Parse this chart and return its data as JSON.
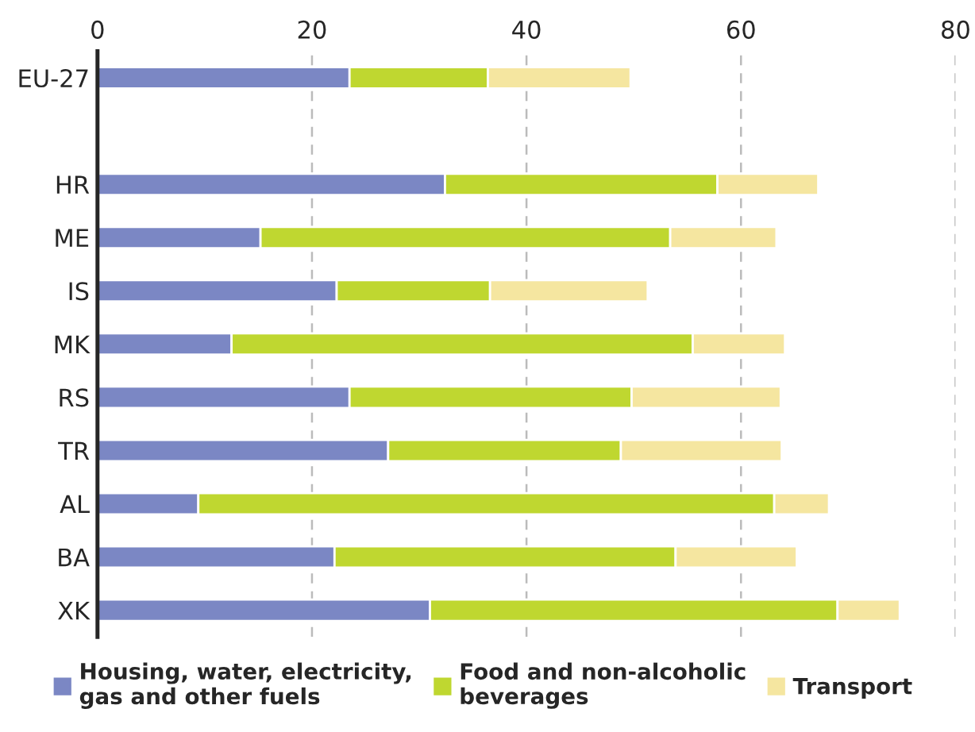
{
  "chart_data": {
    "type": "bar",
    "orientation": "horizontal",
    "stacked": true,
    "categories": [
      "EU-27",
      null,
      "HR",
      "ME",
      "IS",
      "MK",
      "RS",
      "TR",
      "AL",
      "BA",
      "XK"
    ],
    "series": [
      {
        "name": "Housing, water, electricity,\ngas and other fuels",
        "color": "#7b87c4",
        "values": [
          23.5,
          null,
          32.4,
          15.2,
          22.3,
          12.5,
          23.5,
          27.1,
          9.4,
          22.1,
          31.0
        ]
      },
      {
        "name": "Food and non-alcoholic\nbeverages",
        "color": "#bfd730",
        "values": [
          12.9,
          null,
          25.4,
          38.2,
          14.3,
          43.0,
          26.3,
          21.7,
          53.7,
          31.8,
          38.0
        ]
      },
      {
        "name": "Transport",
        "color": "#f5e6a0",
        "values": [
          13.3,
          null,
          9.4,
          9.9,
          14.7,
          8.6,
          13.9,
          15.0,
          5.1,
          11.3,
          5.8
        ]
      }
    ],
    "xlim": [
      0,
      80
    ],
    "xticks": [
      0,
      20,
      40,
      60,
      80
    ],
    "grid": "x",
    "legend": "bottom"
  }
}
